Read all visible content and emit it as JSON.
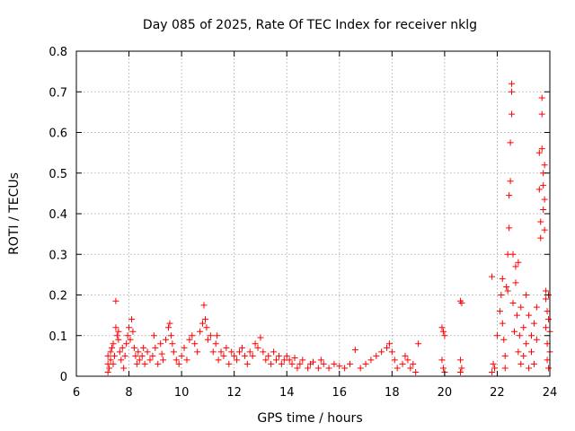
{
  "chart_data": {
    "type": "scatter",
    "title": "Day 085 of 2025, Rate Of TEC Index for receiver nklg",
    "xlabel": "GPS time / hours",
    "ylabel": "ROTI / TECUs",
    "xlim": [
      6,
      24
    ],
    "ylim": [
      0,
      0.8
    ],
    "xticks": [
      6,
      8,
      10,
      12,
      14,
      16,
      18,
      20,
      22,
      24
    ],
    "yticks": [
      0,
      0.1,
      0.2,
      0.3,
      0.4,
      0.5,
      0.6,
      0.7,
      0.8
    ],
    "xtick_labels": [
      "6",
      "8",
      "10",
      "12",
      "14",
      "16",
      "18",
      "20",
      "22",
      "24"
    ],
    "ytick_labels": [
      "0",
      "0.1",
      "0.2",
      "0.3",
      "0.4",
      "0.5",
      "0.6",
      "0.7",
      "0.8"
    ],
    "grid": true,
    "marker": "+",
    "marker_color": "#ff0000",
    "series": [
      {
        "points": [
          [
            7.2,
            0.01
          ],
          [
            7.2,
            0.03
          ],
          [
            7.2,
            0.05
          ],
          [
            7.25,
            0.02
          ],
          [
            7.3,
            0.06
          ],
          [
            7.3,
            0.04
          ],
          [
            7.35,
            0.07
          ],
          [
            7.4,
            0.03
          ],
          [
            7.4,
            0.08
          ],
          [
            7.45,
            0.05
          ],
          [
            7.5,
            0.185
          ],
          [
            7.5,
            0.12
          ],
          [
            7.55,
            0.1
          ],
          [
            7.6,
            0.11
          ],
          [
            7.6,
            0.09
          ],
          [
            7.65,
            0.06
          ],
          [
            7.7,
            0.04
          ],
          [
            7.75,
            0.07
          ],
          [
            7.8,
            0.02
          ],
          [
            7.85,
            0.05
          ],
          [
            7.9,
            0.08
          ],
          [
            7.95,
            0.1
          ],
          [
            8.0,
            0.12
          ],
          [
            8.05,
            0.09
          ],
          [
            8.1,
            0.14
          ],
          [
            8.15,
            0.11
          ],
          [
            8.2,
            0.07
          ],
          [
            8.25,
            0.05
          ],
          [
            8.3,
            0.03
          ],
          [
            8.35,
            0.06
          ],
          [
            8.4,
            0.04
          ],
          [
            8.5,
            0.05
          ],
          [
            8.55,
            0.07
          ],
          [
            8.6,
            0.03
          ],
          [
            8.7,
            0.06
          ],
          [
            8.8,
            0.04
          ],
          [
            8.9,
            0.05
          ],
          [
            8.95,
            0.1
          ],
          [
            9.0,
            0.07
          ],
          [
            9.1,
            0.03
          ],
          [
            9.2,
            0.08
          ],
          [
            9.25,
            0.055
          ],
          [
            9.3,
            0.04
          ],
          [
            9.4,
            0.09
          ],
          [
            9.5,
            0.12
          ],
          [
            9.55,
            0.13
          ],
          [
            9.6,
            0.1
          ],
          [
            9.65,
            0.08
          ],
          [
            9.7,
            0.06
          ],
          [
            9.8,
            0.04
          ],
          [
            9.9,
            0.03
          ],
          [
            10.0,
            0.05
          ],
          [
            10.1,
            0.07
          ],
          [
            10.2,
            0.04
          ],
          [
            10.3,
            0.09
          ],
          [
            10.4,
            0.1
          ],
          [
            10.5,
            0.08
          ],
          [
            10.6,
            0.06
          ],
          [
            10.7,
            0.11
          ],
          [
            10.8,
            0.13
          ],
          [
            10.85,
            0.175
          ],
          [
            10.9,
            0.14
          ],
          [
            10.95,
            0.12
          ],
          [
            11.0,
            0.09
          ],
          [
            11.1,
            0.1
          ],
          [
            11.2,
            0.06
          ],
          [
            11.3,
            0.08
          ],
          [
            11.35,
            0.1
          ],
          [
            11.4,
            0.04
          ],
          [
            11.5,
            0.06
          ],
          [
            11.6,
            0.05
          ],
          [
            11.7,
            0.07
          ],
          [
            11.8,
            0.03
          ],
          [
            11.9,
            0.06
          ],
          [
            12.0,
            0.05
          ],
          [
            12.1,
            0.04
          ],
          [
            12.2,
            0.06
          ],
          [
            12.3,
            0.07
          ],
          [
            12.4,
            0.05
          ],
          [
            12.5,
            0.03
          ],
          [
            12.6,
            0.06
          ],
          [
            12.7,
            0.05
          ],
          [
            12.8,
            0.08
          ],
          [
            12.9,
            0.07
          ],
          [
            13.0,
            0.095
          ],
          [
            13.1,
            0.06
          ],
          [
            13.2,
            0.04
          ],
          [
            13.3,
            0.05
          ],
          [
            13.4,
            0.03
          ],
          [
            13.5,
            0.06
          ],
          [
            13.6,
            0.04
          ],
          [
            13.7,
            0.05
          ],
          [
            13.8,
            0.03
          ],
          [
            13.9,
            0.04
          ],
          [
            14.0,
            0.05
          ],
          [
            14.1,
            0.04
          ],
          [
            14.2,
            0.03
          ],
          [
            14.3,
            0.045
          ],
          [
            14.4,
            0.02
          ],
          [
            14.5,
            0.03
          ],
          [
            14.6,
            0.04
          ],
          [
            14.8,
            0.02
          ],
          [
            14.9,
            0.03
          ],
          [
            15.0,
            0.035
          ],
          [
            15.2,
            0.02
          ],
          [
            15.3,
            0.04
          ],
          [
            15.4,
            0.03
          ],
          [
            15.6,
            0.02
          ],
          [
            15.8,
            0.03
          ],
          [
            16.0,
            0.025
          ],
          [
            16.2,
            0.02
          ],
          [
            16.4,
            0.03
          ],
          [
            16.6,
            0.065
          ],
          [
            16.8,
            0.02
          ],
          [
            17.0,
            0.03
          ],
          [
            17.2,
            0.04
          ],
          [
            17.4,
            0.05
          ],
          [
            17.6,
            0.06
          ],
          [
            17.8,
            0.07
          ],
          [
            17.9,
            0.08
          ],
          [
            18.0,
            0.06
          ],
          [
            18.1,
            0.04
          ],
          [
            18.2,
            0.02
          ],
          [
            18.4,
            0.03
          ],
          [
            18.5,
            0.05
          ],
          [
            18.6,
            0.04
          ],
          [
            18.7,
            0.02
          ],
          [
            18.8,
            0.03
          ],
          [
            18.9,
            0.01
          ],
          [
            19.0,
            0.08
          ],
          [
            19.9,
            0.12
          ],
          [
            19.95,
            0.11
          ],
          [
            20.0,
            0.1
          ],
          [
            19.9,
            0.04
          ],
          [
            19.95,
            0.02
          ],
          [
            20.0,
            0.01
          ],
          [
            20.6,
            0.185
          ],
          [
            20.65,
            0.18
          ],
          [
            20.6,
            0.04
          ],
          [
            20.65,
            0.02
          ],
          [
            20.6,
            0.01
          ],
          [
            21.8,
            0.01
          ],
          [
            21.85,
            0.03
          ],
          [
            21.9,
            0.02
          ],
          [
            21.8,
            0.245
          ],
          [
            22.0,
            0.1
          ],
          [
            22.1,
            0.16
          ],
          [
            22.15,
            0.2
          ],
          [
            22.2,
            0.24
          ],
          [
            22.2,
            0.13
          ],
          [
            22.25,
            0.09
          ],
          [
            22.3,
            0.05
          ],
          [
            22.3,
            0.02
          ],
          [
            22.35,
            0.22
          ],
          [
            22.4,
            0.3
          ],
          [
            22.4,
            0.21
          ],
          [
            22.45,
            0.365
          ],
          [
            22.45,
            0.445
          ],
          [
            22.5,
            0.575
          ],
          [
            22.5,
            0.48
          ],
          [
            22.55,
            0.72
          ],
          [
            22.55,
            0.7
          ],
          [
            22.55,
            0.645
          ],
          [
            22.6,
            0.3
          ],
          [
            22.6,
            0.18
          ],
          [
            22.65,
            0.11
          ],
          [
            22.7,
            0.27
          ],
          [
            22.7,
            0.23
          ],
          [
            22.75,
            0.15
          ],
          [
            22.8,
            0.06
          ],
          [
            22.8,
            0.28
          ],
          [
            22.85,
            0.1
          ],
          [
            22.9,
            0.03
          ],
          [
            22.9,
            0.17
          ],
          [
            23.0,
            0.12
          ],
          [
            23.0,
            0.05
          ],
          [
            23.1,
            0.2
          ],
          [
            23.1,
            0.08
          ],
          [
            23.2,
            0.15
          ],
          [
            23.2,
            0.02
          ],
          [
            23.3,
            0.1
          ],
          [
            23.3,
            0.06
          ],
          [
            23.4,
            0.13
          ],
          [
            23.4,
            0.03
          ],
          [
            23.5,
            0.09
          ],
          [
            23.5,
            0.17
          ],
          [
            23.6,
            0.55
          ],
          [
            23.6,
            0.46
          ],
          [
            23.65,
            0.38
          ],
          [
            23.65,
            0.34
          ],
          [
            23.7,
            0.685
          ],
          [
            23.7,
            0.645
          ],
          [
            23.7,
            0.56
          ],
          [
            23.75,
            0.5
          ],
          [
            23.75,
            0.47
          ],
          [
            23.75,
            0.41
          ],
          [
            23.8,
            0.435
          ],
          [
            23.8,
            0.36
          ],
          [
            23.8,
            0.52
          ],
          [
            23.85,
            0.21
          ],
          [
            23.85,
            0.19
          ],
          [
            23.85,
            0.12
          ],
          [
            23.9,
            0.16
          ],
          [
            23.9,
            0.08
          ],
          [
            23.9,
            0.04
          ],
          [
            23.95,
            0.2
          ],
          [
            23.95,
            0.14
          ],
          [
            23.95,
            0.02
          ],
          [
            24.0,
            0.11
          ],
          [
            24.0,
            0.06
          ]
        ]
      }
    ]
  }
}
